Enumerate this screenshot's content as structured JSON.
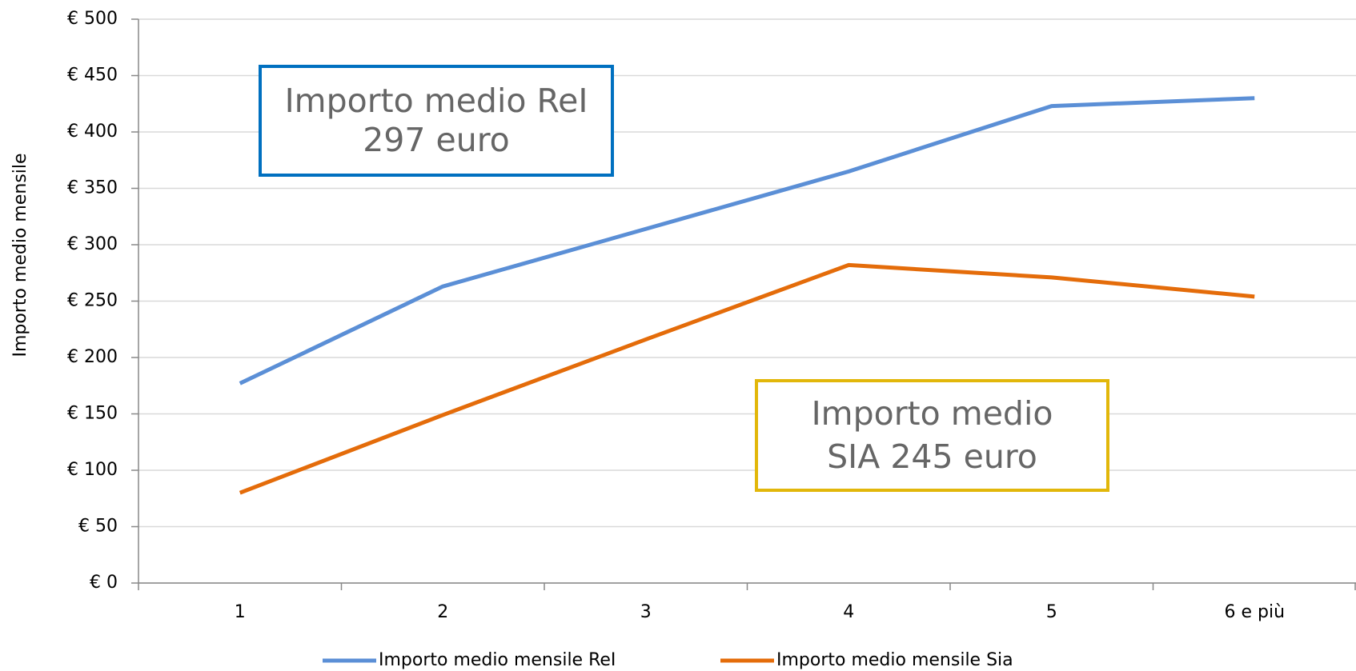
{
  "chart_data": {
    "type": "line",
    "y_label": "Importo medio mensile",
    "categories": [
      "1",
      "2",
      "3",
      "4",
      "5",
      "6 e più"
    ],
    "series": [
      {
        "name": "Importo medio mensile ReI",
        "color": "#5b8fd6",
        "values": [
          177,
          263,
          314,
          365,
          423,
          430
        ]
      },
      {
        "name": "Importo medio mensile Sia",
        "color": "#e46c0a",
        "values": [
          80,
          149,
          216,
          282,
          271,
          254
        ]
      }
    ],
    "ylim": [
      0,
      500
    ],
    "yticks": [
      {
        "value": 0,
        "label": "€ 0"
      },
      {
        "value": 50,
        "label": "€ 50"
      },
      {
        "value": 100,
        "label": "€ 100"
      },
      {
        "value": 150,
        "label": "€ 150"
      },
      {
        "value": 200,
        "label": "€ 200"
      },
      {
        "value": 250,
        "label": "€ 250"
      },
      {
        "value": 300,
        "label": "€ 300"
      },
      {
        "value": 350,
        "label": "€ 350"
      },
      {
        "value": 400,
        "label": "€ 400"
      },
      {
        "value": 450,
        "label": "€ 450"
      },
      {
        "value": 500,
        "label": "€ 500"
      }
    ],
    "grid": true,
    "legend": "bottom",
    "annotations": [
      {
        "lines": [
          "Importo medio ReI",
          "297 euro"
        ],
        "color": "#0070c0"
      },
      {
        "lines": [
          "Importo medio",
          "SIA 245 euro"
        ],
        "color": "#e2b70a"
      }
    ]
  }
}
